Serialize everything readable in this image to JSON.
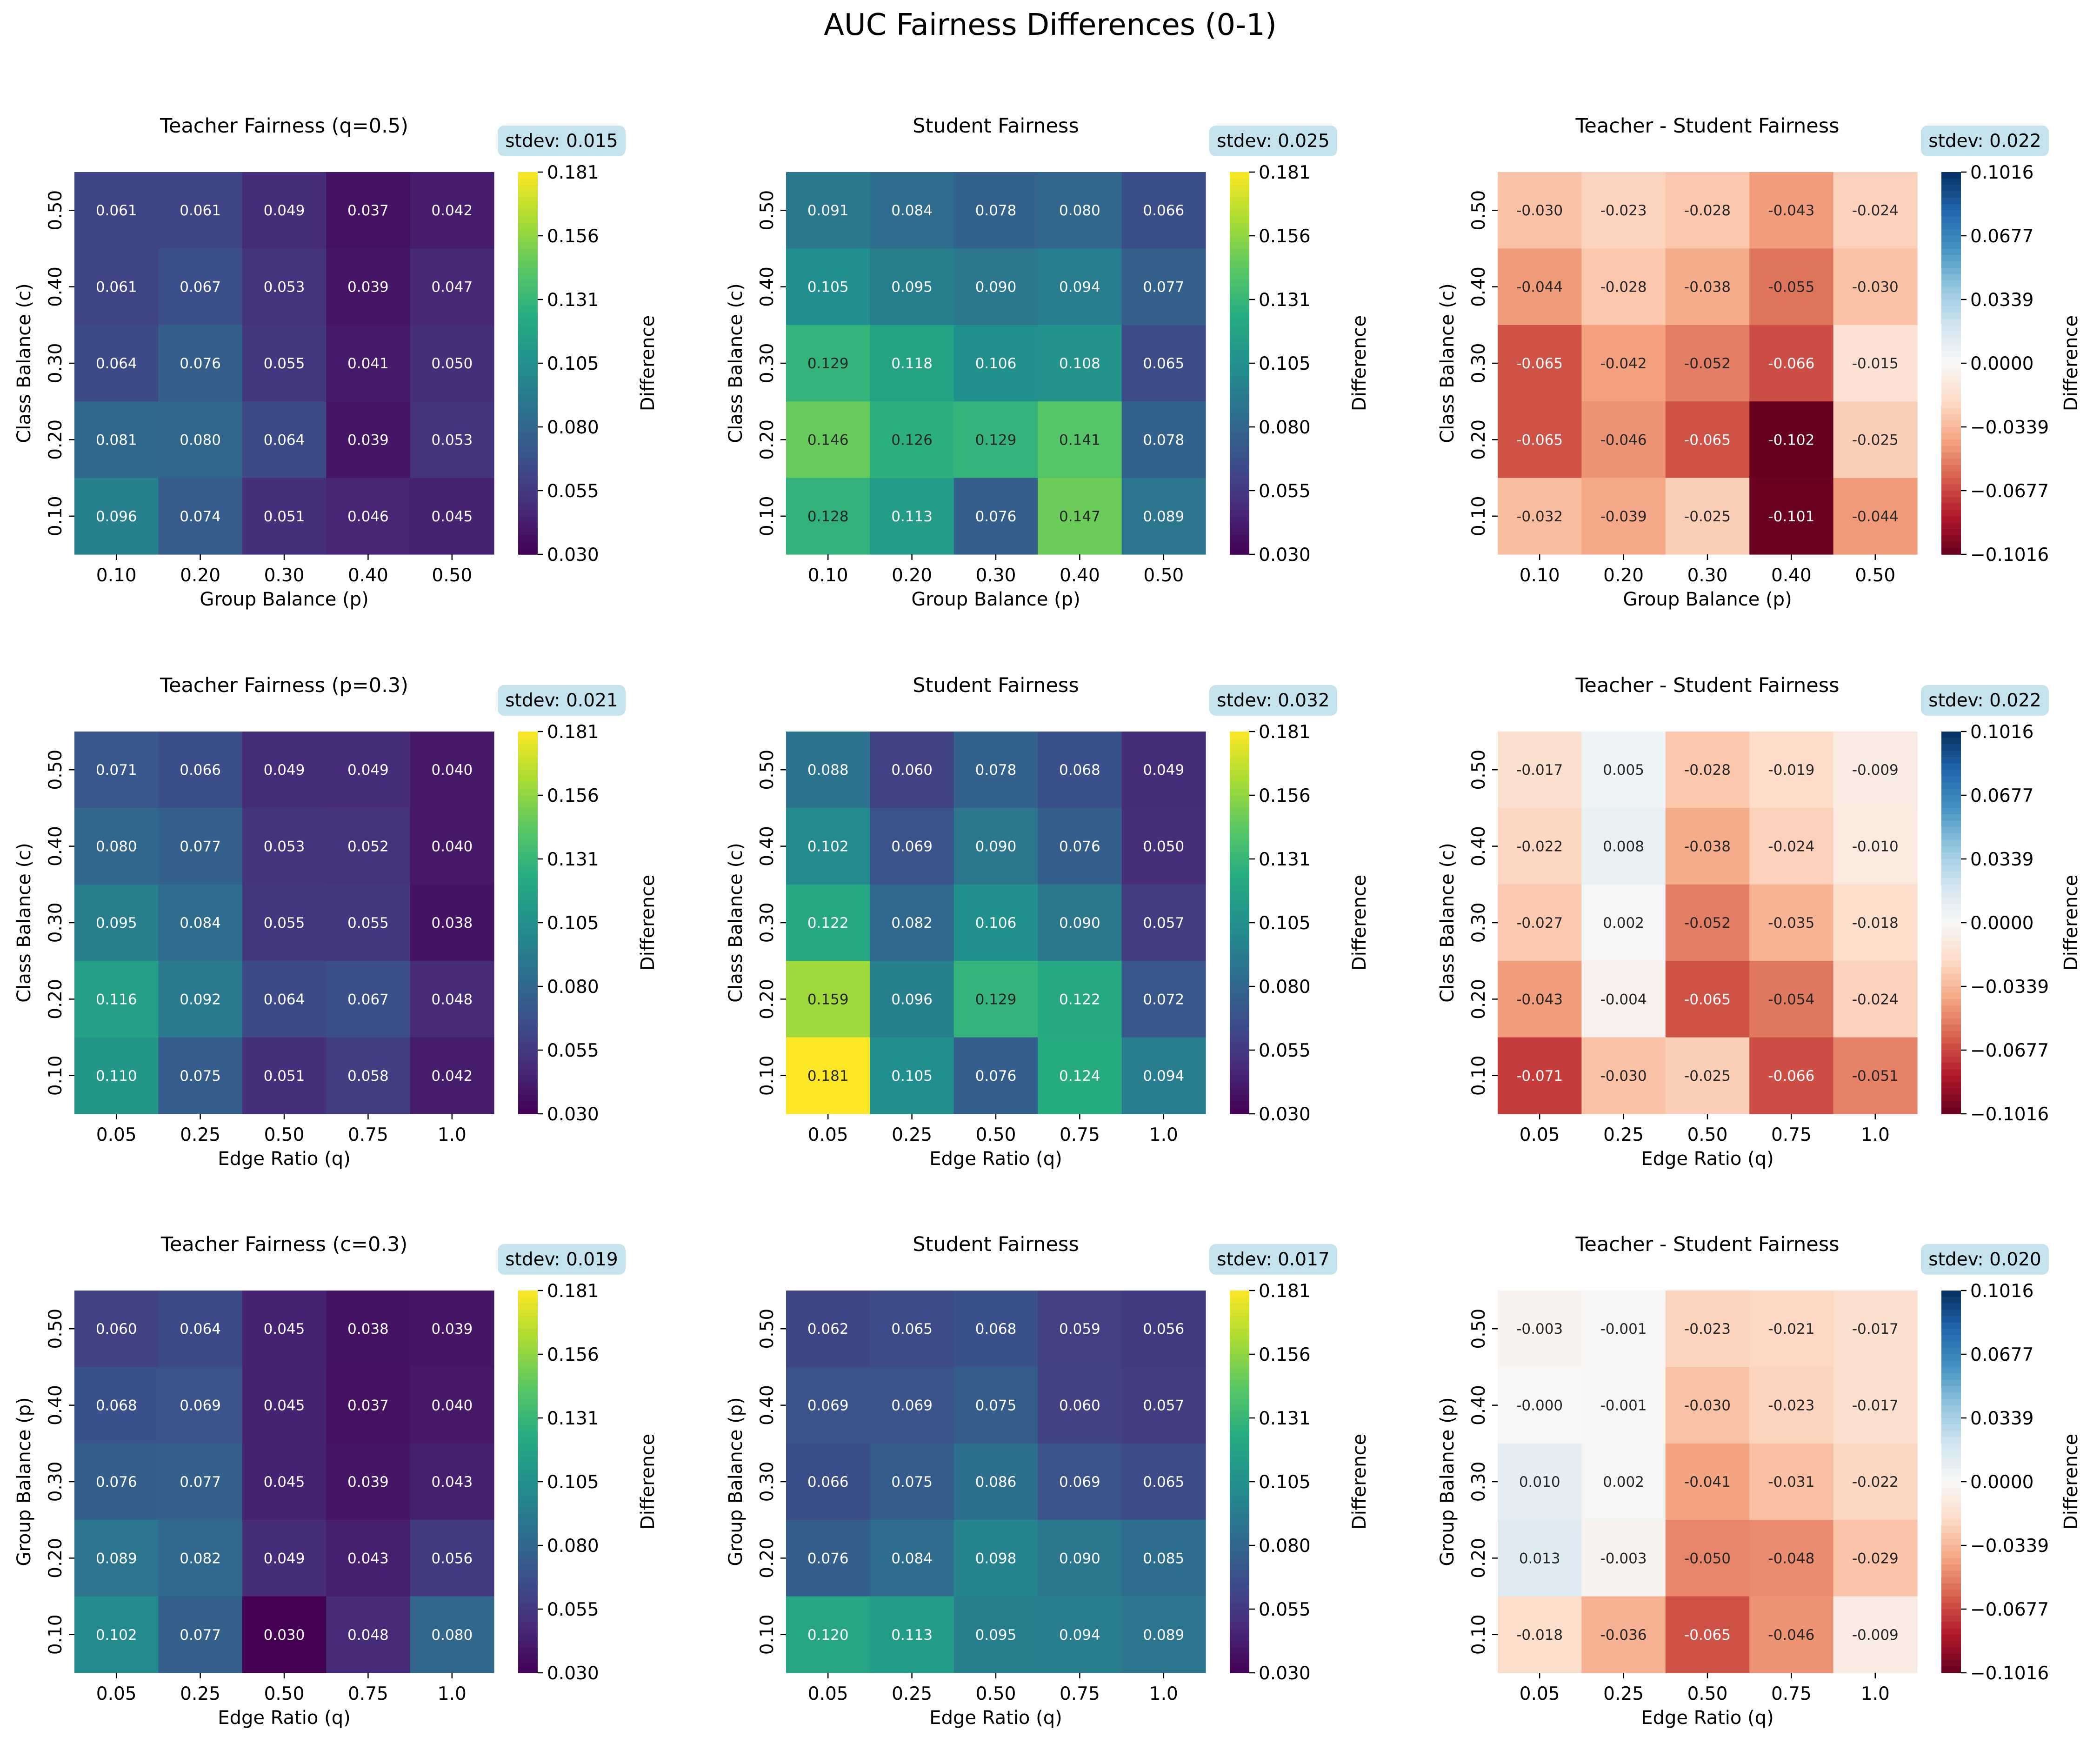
{
  "figure": {
    "suptitle": "AUC Fairness Differences (0-1)"
  },
  "chart_data": [
    {
      "type": "heatmap",
      "title": "Teacher Fairness (q=0.5)",
      "stdev_label": "stdev: 0.015",
      "xlabel": "Group Balance (p)",
      "ylabel": "Class Balance (c)",
      "x": [
        "0.10",
        "0.20",
        "0.30",
        "0.40",
        "0.50"
      ],
      "y": [
        "0.10",
        "0.20",
        "0.30",
        "0.40",
        "0.50"
      ],
      "values": [
        [
          0.096,
          0.074,
          0.051,
          0.046,
          0.045
        ],
        [
          0.081,
          0.08,
          0.064,
          0.039,
          0.053
        ],
        [
          0.064,
          0.076,
          0.055,
          0.041,
          0.05
        ],
        [
          0.061,
          0.067,
          0.053,
          0.039,
          0.047
        ],
        [
          0.061,
          0.061,
          0.049,
          0.037,
          0.042
        ]
      ],
      "colormap": "viridis",
      "vmin": 0.03,
      "vmax": 0.181,
      "colorbar_label": "Difference",
      "colorbar_ticks": [
        "0.030",
        "0.055",
        "0.080",
        "0.105",
        "0.131",
        "0.156",
        "0.181"
      ]
    },
    {
      "type": "heatmap",
      "title": "Student Fairness",
      "stdev_label": "stdev: 0.025",
      "xlabel": "Group Balance (p)",
      "ylabel": "Class Balance (c)",
      "x": [
        "0.10",
        "0.20",
        "0.30",
        "0.40",
        "0.50"
      ],
      "y": [
        "0.10",
        "0.20",
        "0.30",
        "0.40",
        "0.50"
      ],
      "values": [
        [
          0.128,
          0.113,
          0.076,
          0.147,
          0.089
        ],
        [
          0.146,
          0.126,
          0.129,
          0.141,
          0.078
        ],
        [
          0.129,
          0.118,
          0.106,
          0.108,
          0.065
        ],
        [
          0.105,
          0.095,
          0.09,
          0.094,
          0.077
        ],
        [
          0.091,
          0.084,
          0.078,
          0.08,
          0.066
        ]
      ],
      "colormap": "viridis",
      "vmin": 0.03,
      "vmax": 0.181,
      "colorbar_label": "Difference",
      "colorbar_ticks": [
        "0.030",
        "0.055",
        "0.080",
        "0.105",
        "0.131",
        "0.156",
        "0.181"
      ]
    },
    {
      "type": "heatmap",
      "title": "Teacher - Student Fairness",
      "stdev_label": "stdev: 0.022",
      "xlabel": "Group Balance (p)",
      "ylabel": "Class Balance (c)",
      "x": [
        "0.10",
        "0.20",
        "0.30",
        "0.40",
        "0.50"
      ],
      "y": [
        "0.10",
        "0.20",
        "0.30",
        "0.40",
        "0.50"
      ],
      "values": [
        [
          -0.032,
          -0.039,
          -0.025,
          -0.101,
          -0.044
        ],
        [
          -0.065,
          -0.046,
          -0.065,
          -0.102,
          -0.025
        ],
        [
          -0.065,
          -0.042,
          -0.052,
          -0.066,
          -0.015
        ],
        [
          -0.044,
          -0.028,
          -0.038,
          -0.055,
          -0.03
        ],
        [
          -0.03,
          -0.023,
          -0.028,
          -0.043,
          -0.024
        ]
      ],
      "colormap": "RdBu",
      "vmin": -0.1016,
      "vmax": 0.1016,
      "colorbar_label": "Difference",
      "colorbar_ticks": [
        "−0.1016",
        "−0.0677",
        "−0.0339",
        "0.0000",
        "0.0339",
        "0.0677",
        "0.1016"
      ]
    },
    {
      "type": "heatmap",
      "title": "Teacher Fairness (p=0.3)",
      "stdev_label": "stdev: 0.021",
      "xlabel": "Edge Ratio (q)",
      "ylabel": "Class Balance (c)",
      "x": [
        "0.05",
        "0.25",
        "0.50",
        "0.75",
        "1.0"
      ],
      "y": [
        "0.10",
        "0.20",
        "0.30",
        "0.40",
        "0.50"
      ],
      "values": [
        [
          0.11,
          0.075,
          0.051,
          0.058,
          0.042
        ],
        [
          0.116,
          0.092,
          0.064,
          0.067,
          0.048
        ],
        [
          0.095,
          0.084,
          0.055,
          0.055,
          0.038
        ],
        [
          0.08,
          0.077,
          0.053,
          0.052,
          0.04
        ],
        [
          0.071,
          0.066,
          0.049,
          0.049,
          0.04
        ]
      ],
      "colormap": "viridis",
      "vmin": 0.03,
      "vmax": 0.181,
      "colorbar_label": "Difference",
      "colorbar_ticks": [
        "0.030",
        "0.055",
        "0.080",
        "0.105",
        "0.131",
        "0.156",
        "0.181"
      ]
    },
    {
      "type": "heatmap",
      "title": "Student Fairness",
      "stdev_label": "stdev: 0.032",
      "xlabel": "Edge Ratio (q)",
      "ylabel": "Class Balance (c)",
      "x": [
        "0.05",
        "0.25",
        "0.50",
        "0.75",
        "1.0"
      ],
      "y": [
        "0.10",
        "0.20",
        "0.30",
        "0.40",
        "0.50"
      ],
      "values": [
        [
          0.181,
          0.105,
          0.076,
          0.124,
          0.094
        ],
        [
          0.159,
          0.096,
          0.129,
          0.122,
          0.072
        ],
        [
          0.122,
          0.082,
          0.106,
          0.09,
          0.057
        ],
        [
          0.102,
          0.069,
          0.09,
          0.076,
          0.05
        ],
        [
          0.088,
          0.06,
          0.078,
          0.068,
          0.049
        ]
      ],
      "colormap": "viridis",
      "vmin": 0.03,
      "vmax": 0.181,
      "colorbar_label": "Difference",
      "colorbar_ticks": [
        "0.030",
        "0.055",
        "0.080",
        "0.105",
        "0.131",
        "0.156",
        "0.181"
      ]
    },
    {
      "type": "heatmap",
      "title": "Teacher - Student Fairness",
      "stdev_label": "stdev: 0.022",
      "xlabel": "Edge Ratio (q)",
      "ylabel": "Class Balance (c)",
      "x": [
        "0.05",
        "0.25",
        "0.50",
        "0.75",
        "1.0"
      ],
      "y": [
        "0.10",
        "0.20",
        "0.30",
        "0.40",
        "0.50"
      ],
      "values": [
        [
          -0.071,
          -0.03,
          -0.025,
          -0.066,
          -0.051
        ],
        [
          -0.043,
          -0.004,
          -0.065,
          -0.054,
          -0.024
        ],
        [
          -0.027,
          0.002,
          -0.052,
          -0.035,
          -0.018
        ],
        [
          -0.022,
          0.008,
          -0.038,
          -0.024,
          -0.01
        ],
        [
          -0.017,
          0.005,
          -0.028,
          -0.019,
          -0.009
        ]
      ],
      "colormap": "RdBu",
      "vmin": -0.1016,
      "vmax": 0.1016,
      "colorbar_label": "Difference",
      "colorbar_ticks": [
        "−0.1016",
        "−0.0677",
        "−0.0339",
        "0.0000",
        "0.0339",
        "0.0677",
        "0.1016"
      ]
    },
    {
      "type": "heatmap",
      "title": "Teacher Fairness (c=0.3)",
      "stdev_label": "stdev: 0.019",
      "xlabel": "Edge Ratio (q)",
      "ylabel": "Group Balance (p)",
      "x": [
        "0.05",
        "0.25",
        "0.50",
        "0.75",
        "1.0"
      ],
      "y": [
        "0.10",
        "0.20",
        "0.30",
        "0.40",
        "0.50"
      ],
      "values": [
        [
          0.102,
          0.077,
          0.03,
          0.048,
          0.08
        ],
        [
          0.089,
          0.082,
          0.049,
          0.043,
          0.056
        ],
        [
          0.076,
          0.077,
          0.045,
          0.039,
          0.043
        ],
        [
          0.068,
          0.069,
          0.045,
          0.037,
          0.04
        ],
        [
          0.06,
          0.064,
          0.045,
          0.038,
          0.039
        ]
      ],
      "colormap": "viridis",
      "vmin": 0.03,
      "vmax": 0.181,
      "colorbar_label": "Difference",
      "colorbar_ticks": [
        "0.030",
        "0.055",
        "0.080",
        "0.105",
        "0.131",
        "0.156",
        "0.181"
      ]
    },
    {
      "type": "heatmap",
      "title": "Student Fairness",
      "stdev_label": "stdev: 0.017",
      "xlabel": "Edge Ratio (q)",
      "ylabel": "Group Balance (p)",
      "x": [
        "0.05",
        "0.25",
        "0.50",
        "0.75",
        "1.0"
      ],
      "y": [
        "0.10",
        "0.20",
        "0.30",
        "0.40",
        "0.50"
      ],
      "values": [
        [
          0.12,
          0.113,
          0.095,
          0.094,
          0.089
        ],
        [
          0.076,
          0.084,
          0.098,
          0.09,
          0.085
        ],
        [
          0.066,
          0.075,
          0.086,
          0.069,
          0.065
        ],
        [
          0.069,
          0.069,
          0.075,
          0.06,
          0.057
        ],
        [
          0.062,
          0.065,
          0.068,
          0.059,
          0.056
        ]
      ],
      "colormap": "viridis",
      "vmin": 0.03,
      "vmax": 0.181,
      "colorbar_label": "Difference",
      "colorbar_ticks": [
        "0.030",
        "0.055",
        "0.080",
        "0.105",
        "0.131",
        "0.156",
        "0.181"
      ]
    },
    {
      "type": "heatmap",
      "title": "Teacher - Student Fairness",
      "stdev_label": "stdev: 0.020",
      "xlabel": "Edge Ratio (q)",
      "ylabel": "Group Balance (p)",
      "x": [
        "0.05",
        "0.25",
        "0.50",
        "0.75",
        "1.0"
      ],
      "y": [
        "0.10",
        "0.20",
        "0.30",
        "0.40",
        "0.50"
      ],
      "values": [
        [
          -0.018,
          -0.036,
          -0.065,
          -0.046,
          -0.009
        ],
        [
          0.013,
          -0.003,
          -0.05,
          -0.048,
          -0.029
        ],
        [
          0.01,
          0.002,
          -0.041,
          -0.031,
          -0.022
        ],
        [
          "-0.000",
          -0.001,
          -0.03,
          -0.023,
          -0.017
        ],
        [
          -0.003,
          -0.001,
          -0.023,
          -0.021,
          -0.017
        ]
      ],
      "colormap": "RdBu",
      "vmin": -0.1016,
      "vmax": 0.1016,
      "colorbar_label": "Difference",
      "colorbar_ticks": [
        "−0.1016",
        "−0.0677",
        "−0.0339",
        "0.0000",
        "0.0339",
        "0.0677",
        "0.1016"
      ]
    }
  ]
}
